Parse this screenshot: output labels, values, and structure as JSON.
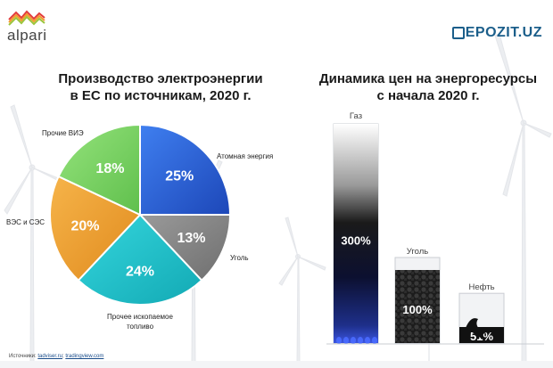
{
  "brand": {
    "logo_text": "alpari",
    "partner": "EPOZIT.UZ"
  },
  "left_title": {
    "line1": "Производство электроэнергии",
    "line2": "в ЕС по источникам, 2020 г."
  },
  "right_title": {
    "line1": "Динамика цен на энергоресурсы",
    "line2": "с начала 2020 г."
  },
  "source": {
    "label": "Источники:",
    "link1": "tadviser.ru",
    "sep": ";",
    "link2": "tradingview.com"
  },
  "colors": {
    "atomic": "#2b5fd6",
    "coal": "#8a8a8a",
    "fossil": "#22c4cc",
    "hydro_solar": "#f1a23a",
    "renewables": "#7fd36a"
  },
  "chart_data": [
    {
      "type": "pie",
      "title": "Производство электроэнергии в ЕС по источникам, 2020 г.",
      "slices": [
        {
          "name": "Атомная энергия",
          "value": 25,
          "label": "25%"
        },
        {
          "name": "Уголь",
          "value": 13,
          "label": "13%"
        },
        {
          "name": "Прочее ископаемое топливо",
          "value": 24,
          "label": "24%"
        },
        {
          "name": "ВЭС и СЭС",
          "value": 20,
          "label": "20%"
        },
        {
          "name": "Прочие ВИЭ",
          "value": 18,
          "label": "18%"
        }
      ]
    },
    {
      "type": "bar",
      "title": "Динамика цен на энергоресурсы с начала 2020 г.",
      "categories": [
        "Газ",
        "Уголь",
        "Нефть"
      ],
      "values": [
        300,
        100,
        51
      ],
      "labels": [
        "300%",
        "100%",
        "51%"
      ],
      "ylim": [
        0,
        300
      ]
    }
  ]
}
